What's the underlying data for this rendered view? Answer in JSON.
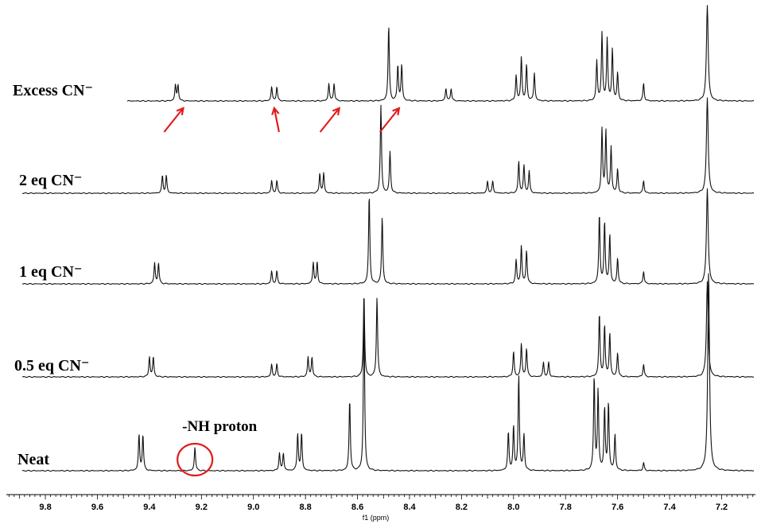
{
  "chart_data": {
    "type": "line",
    "title": "",
    "xlabel": "f1 (ppm)",
    "ylabel": "",
    "xlim": [
      9.95,
      7.07
    ],
    "x_reversed": true,
    "grid": false,
    "x_ticks": [
      9.8,
      9.6,
      9.4,
      9.2,
      9.0,
      8.8,
      8.6,
      8.4,
      8.2,
      8.0,
      7.8,
      7.6,
      7.4,
      7.2
    ],
    "x_tick_labels": [
      "9.8",
      "9.6",
      "9.4",
      "9.2",
      "9.0",
      "8.8",
      "8.6",
      "8.4",
      "8.2",
      "8.0",
      "7.8",
      "7.6",
      "7.4",
      "7.2"
    ],
    "series": [
      {
        "name": "Excess CN⁻",
        "peaks": [
          {
            "ppm": 9.3,
            "h": 20
          },
          {
            "ppm": 9.29,
            "h": 20
          },
          {
            "ppm": 8.93,
            "h": 18
          },
          {
            "ppm": 8.91,
            "h": 18
          },
          {
            "ppm": 8.71,
            "h": 22
          },
          {
            "ppm": 8.69,
            "h": 22
          },
          {
            "ppm": 8.48,
            "h": 95
          },
          {
            "ppm": 8.445,
            "h": 45
          },
          {
            "ppm": 8.43,
            "h": 45
          },
          {
            "ppm": 8.26,
            "h": 16
          },
          {
            "ppm": 8.24,
            "h": 16
          },
          {
            "ppm": 7.97,
            "h": 55
          },
          {
            "ppm": 7.95,
            "h": 45
          },
          {
            "ppm": 7.92,
            "h": 35
          },
          {
            "ppm": 7.99,
            "h": 32
          },
          {
            "ppm": 7.66,
            "h": 85
          },
          {
            "ppm": 7.64,
            "h": 78
          },
          {
            "ppm": 7.62,
            "h": 65
          },
          {
            "ppm": 7.6,
            "h": 35
          },
          {
            "ppm": 7.68,
            "h": 50
          },
          {
            "ppm": 7.5,
            "h": 22
          },
          {
            "ppm": 7.255,
            "h": 120
          }
        ]
      },
      {
        "name": "2 eq CN⁻",
        "peaks": [
          {
            "ppm": 9.35,
            "h": 22
          },
          {
            "ppm": 9.335,
            "h": 22
          },
          {
            "ppm": 8.93,
            "h": 16
          },
          {
            "ppm": 8.91,
            "h": 16
          },
          {
            "ppm": 8.745,
            "h": 25
          },
          {
            "ppm": 8.73,
            "h": 25
          },
          {
            "ppm": 8.51,
            "h": 110
          },
          {
            "ppm": 8.475,
            "h": 52
          },
          {
            "ppm": 8.1,
            "h": 15
          },
          {
            "ppm": 8.08,
            "h": 15
          },
          {
            "ppm": 7.98,
            "h": 40
          },
          {
            "ppm": 7.96,
            "h": 35
          },
          {
            "ppm": 7.94,
            "h": 28
          },
          {
            "ppm": 7.66,
            "h": 80
          },
          {
            "ppm": 7.645,
            "h": 78
          },
          {
            "ppm": 7.625,
            "h": 58
          },
          {
            "ppm": 7.6,
            "h": 30
          },
          {
            "ppm": 7.5,
            "h": 16
          },
          {
            "ppm": 7.255,
            "h": 120
          }
        ]
      },
      {
        "name": "1 eq CN⁻",
        "peaks": [
          {
            "ppm": 9.38,
            "h": 26
          },
          {
            "ppm": 9.365,
            "h": 26
          },
          {
            "ppm": 8.93,
            "h": 16
          },
          {
            "ppm": 8.91,
            "h": 16
          },
          {
            "ppm": 8.77,
            "h": 27
          },
          {
            "ppm": 8.755,
            "h": 27
          },
          {
            "ppm": 8.555,
            "h": 112
          },
          {
            "ppm": 8.505,
            "h": 84
          },
          {
            "ppm": 7.97,
            "h": 48
          },
          {
            "ppm": 7.95,
            "h": 42
          },
          {
            "ppm": 7.99,
            "h": 30
          },
          {
            "ppm": 7.67,
            "h": 88
          },
          {
            "ppm": 7.65,
            "h": 78
          },
          {
            "ppm": 7.63,
            "h": 62
          },
          {
            "ppm": 7.6,
            "h": 32
          },
          {
            "ppm": 7.5,
            "h": 16
          },
          {
            "ppm": 7.255,
            "h": 120
          }
        ]
      },
      {
        "name": "0.5 eq CN⁻",
        "peaks": [
          {
            "ppm": 9.4,
            "h": 25
          },
          {
            "ppm": 9.385,
            "h": 25
          },
          {
            "ppm": 8.93,
            "h": 16
          },
          {
            "ppm": 8.91,
            "h": 16
          },
          {
            "ppm": 8.79,
            "h": 25
          },
          {
            "ppm": 8.775,
            "h": 25
          },
          {
            "ppm": 8.575,
            "h": 105
          },
          {
            "ppm": 8.525,
            "h": 100
          },
          {
            "ppm": 8.0,
            "h": 32
          },
          {
            "ppm": 7.97,
            "h": 42
          },
          {
            "ppm": 7.95,
            "h": 36
          },
          {
            "ppm": 7.885,
            "h": 18
          },
          {
            "ppm": 7.865,
            "h": 18
          },
          {
            "ppm": 7.67,
            "h": 80
          },
          {
            "ppm": 7.65,
            "h": 65
          },
          {
            "ppm": 7.63,
            "h": 55
          },
          {
            "ppm": 7.6,
            "h": 30
          },
          {
            "ppm": 7.5,
            "h": 16
          },
          {
            "ppm": 7.255,
            "h": 120
          }
        ]
      },
      {
        "name": "Neat",
        "peaks": [
          {
            "ppm": 9.44,
            "h": 45
          },
          {
            "ppm": 9.425,
            "h": 45
          },
          {
            "ppm": 9.225,
            "h": 30
          },
          {
            "ppm": 8.9,
            "h": 22
          },
          {
            "ppm": 8.885,
            "h": 22
          },
          {
            "ppm": 8.83,
            "h": 47
          },
          {
            "ppm": 8.815,
            "h": 47
          },
          {
            "ppm": 8.63,
            "h": 90
          },
          {
            "ppm": 8.575,
            "h": 205
          },
          {
            "ppm": 8.02,
            "h": 48
          },
          {
            "ppm": 8.0,
            "h": 55
          },
          {
            "ppm": 7.98,
            "h": 120
          },
          {
            "ppm": 7.96,
            "h": 45
          },
          {
            "ppm": 7.69,
            "h": 118
          },
          {
            "ppm": 7.675,
            "h": 100
          },
          {
            "ppm": 7.65,
            "h": 78
          },
          {
            "ppm": 7.635,
            "h": 85
          },
          {
            "ppm": 7.61,
            "h": 45
          },
          {
            "ppm": 7.5,
            "h": 10
          },
          {
            "ppm": 7.25,
            "h": 250
          }
        ]
      }
    ],
    "annotations": [
      {
        "text": "-NH proton",
        "ppm": 9.225,
        "series": "Neat",
        "marker": "circle",
        "color": "#e11d1d"
      }
    ],
    "arrows": [
      {
        "target_ppm": 9.27,
        "series": "Excess CN⁻",
        "color": "#e11d1d"
      },
      {
        "target_ppm": 8.92,
        "series": "Excess CN⁻",
        "color": "#e11d1d"
      },
      {
        "target_ppm": 8.67,
        "series": "Excess CN⁻",
        "color": "#e11d1d"
      },
      {
        "target_ppm": 8.44,
        "series": "Excess CN⁻",
        "color": "#e11d1d"
      }
    ]
  }
}
